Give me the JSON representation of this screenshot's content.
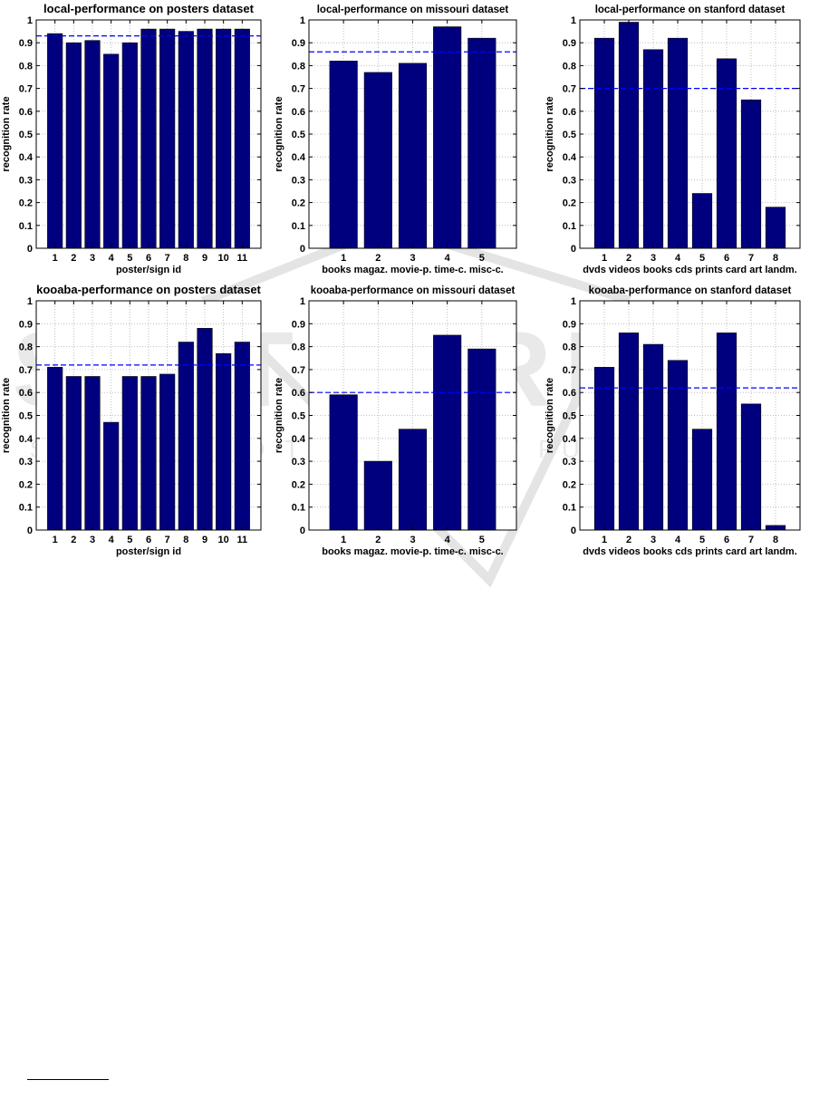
{
  "chart_data": [
    {
      "type": "bar",
      "title": "local-performance on posters dataset",
      "xlabel": "poster/sign id",
      "ylabel": "recognition rate",
      "categories": [
        "1",
        "2",
        "3",
        "4",
        "5",
        "6",
        "7",
        "8",
        "9",
        "10",
        "11"
      ],
      "values": [
        0.94,
        0.9,
        0.91,
        0.85,
        0.9,
        0.96,
        0.96,
        0.95,
        0.96,
        0.96,
        0.96
      ],
      "mean_line": 0.93,
      "ylim": [
        0,
        1
      ],
      "yticks": [
        "0",
        "0.1",
        "0.2",
        "0.3",
        "0.4",
        "0.5",
        "0.6",
        "0.7",
        "0.8",
        "0.9",
        "1"
      ],
      "grid": true
    },
    {
      "type": "bar",
      "title": "local-performance on missouri dataset",
      "xlabel": "books magaz. movie-p. time-c. misc-c.",
      "ylabel": "recognition rate",
      "categories": [
        "1",
        "2",
        "3",
        "4",
        "5"
      ],
      "values": [
        0.82,
        0.77,
        0.81,
        0.97,
        0.92
      ],
      "mean_line": 0.86,
      "ylim": [
        0,
        1
      ],
      "yticks": [
        "0",
        "0.1",
        "0.2",
        "0.3",
        "0.4",
        "0.5",
        "0.6",
        "0.7",
        "0.8",
        "0.9",
        "1"
      ],
      "grid": true
    },
    {
      "type": "bar",
      "title": "local-performance on stanford dataset",
      "xlabel": "dvds videos books cds prints card art landm.",
      "ylabel": "recognition rate",
      "categories": [
        "1",
        "2",
        "3",
        "4",
        "5",
        "6",
        "7",
        "8"
      ],
      "values": [
        0.92,
        0.99,
        0.87,
        0.92,
        0.24,
        0.83,
        0.65,
        0.18
      ],
      "mean_line": 0.7,
      "ylim": [
        0,
        1
      ],
      "yticks": [
        "0",
        "0.1",
        "0.2",
        "0.3",
        "0.4",
        "0.5",
        "0.6",
        "0.7",
        "0.8",
        "0.9",
        "1"
      ],
      "grid": true
    },
    {
      "type": "bar",
      "title": "kooaba-performance on posters dataset",
      "xlabel": "poster/sign id",
      "ylabel": "recognition rate",
      "categories": [
        "1",
        "2",
        "3",
        "4",
        "5",
        "6",
        "7",
        "8",
        "9",
        "10",
        "11"
      ],
      "values": [
        0.71,
        0.67,
        0.67,
        0.47,
        0.67,
        0.67,
        0.68,
        0.82,
        0.88,
        0.77,
        0.82
      ],
      "mean_line": 0.72,
      "ylim": [
        0,
        1
      ],
      "yticks": [
        "0",
        "0.1",
        "0.2",
        "0.3",
        "0.4",
        "0.5",
        "0.6",
        "0.7",
        "0.8",
        "0.9",
        "1"
      ],
      "grid": true
    },
    {
      "type": "bar",
      "title": "kooaba-performance on missouri dataset",
      "xlabel": "books magaz. movie-p. time-c. misc-c.",
      "ylabel": "recognition rate",
      "categories": [
        "1",
        "2",
        "3",
        "4",
        "5"
      ],
      "values": [
        0.59,
        0.3,
        0.44,
        0.85,
        0.79
      ],
      "mean_line": 0.6,
      "ylim": [
        0,
        1
      ],
      "yticks": [
        "0",
        "0.1",
        "0.2",
        "0.3",
        "0.4",
        "0.5",
        "0.6",
        "0.7",
        "0.8",
        "0.9",
        "1"
      ],
      "grid": true
    },
    {
      "type": "bar",
      "title": "kooaba-performance on stanford dataset",
      "xlabel": "dvds videos books cds prints card art landm.",
      "ylabel": "recognition rate",
      "categories": [
        "1",
        "2",
        "3",
        "4",
        "5",
        "6",
        "7",
        "8"
      ],
      "values": [
        0.71,
        0.86,
        0.81,
        0.74,
        0.44,
        0.86,
        0.55,
        0.02
      ],
      "mean_line": 0.62,
      "ylim": [
        0,
        1
      ],
      "yticks": [
        "0",
        "0.1",
        "0.2",
        "0.3",
        "0.4",
        "0.5",
        "0.6",
        "0.7",
        "0.8",
        "0.9",
        "1"
      ],
      "grid": true
    }
  ],
  "colors": {
    "bar_fill": "#00007f",
    "mean_line": "#0000ff",
    "grid": "#b0b0b0",
    "axis": "#000000",
    "watermark": "#e2e2e2"
  },
  "watermark": {
    "line1": "SCITEPRESS",
    "line2": "SCIENCE AND TECHNOLOGY PUBLICATIONS"
  }
}
